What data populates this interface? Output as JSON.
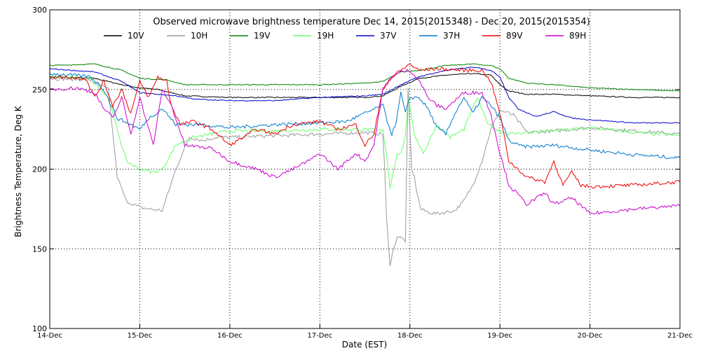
{
  "chart_data": {
    "type": "line",
    "title": "Observed microwave brightness temperature Dec 14, 2015(2015348) - Dec 20, 2015(2015354)",
    "xlabel": "Date (EST)",
    "ylabel": "Brightness Temperature, Deg K",
    "xlim": [
      0,
      7
    ],
    "ylim": [
      100,
      300
    ],
    "yticks": [
      100,
      150,
      200,
      250,
      300
    ],
    "xticks": [
      0,
      1,
      2,
      3,
      4,
      5,
      6,
      7
    ],
    "xtick_labels": [
      "14-Dec",
      "15-Dec",
      "16-Dec",
      "17-Dec",
      "18-Dec",
      "19-Dec",
      "20-Dec",
      "21-Dec"
    ],
    "grid": "dotted",
    "legend_position": "top",
    "series": [
      {
        "name": "10V",
        "color": "#000000",
        "x": [
          0,
          0.5,
          0.8,
          1.0,
          1.2,
          1.5,
          2.0,
          3.0,
          3.5,
          3.7,
          3.9,
          4.1,
          4.4,
          4.7,
          4.9,
          5.0,
          5.1,
          5.3,
          5.6,
          6.0,
          6.5,
          7.0
        ],
        "y": [
          258,
          257,
          253,
          251,
          250,
          246,
          245,
          245,
          245,
          246,
          252,
          257,
          259,
          260,
          259,
          253,
          249,
          247,
          247,
          246,
          245,
          245
        ]
      },
      {
        "name": "10H",
        "color": "#999999",
        "x": [
          0,
          0.45,
          0.65,
          0.75,
          0.85,
          1.0,
          1.1,
          1.25,
          1.4,
          1.55,
          1.7,
          1.85,
          2.0,
          2.5,
          3.0,
          3.5,
          3.7,
          3.72,
          3.74,
          3.78,
          3.82,
          3.86,
          3.9,
          3.95,
          3.98,
          4.02,
          4.05,
          4.08,
          4.12,
          4.2,
          4.3,
          4.5,
          4.6,
          4.7,
          4.8,
          4.9,
          5.0,
          5.15,
          5.3,
          5.6,
          6.0,
          6.5,
          7.0
        ],
        "y": [
          257,
          256,
          250,
          195,
          180,
          176,
          175,
          174,
          200,
          220,
          218,
          220,
          220,
          221,
          222,
          223,
          222,
          200,
          170,
          140,
          150,
          158,
          157,
          155,
          250,
          200,
          195,
          185,
          175,
          173,
          172,
          174,
          180,
          190,
          205,
          225,
          237,
          234,
          223,
          224,
          226,
          224,
          222
        ]
      },
      {
        "name": "19V",
        "color": "#008000",
        "x": [
          0,
          0.5,
          0.8,
          1.0,
          1.3,
          1.5,
          2.0,
          3.0,
          3.5,
          3.7,
          3.9,
          4.1,
          4.4,
          4.7,
          4.9,
          5.0,
          5.1,
          5.3,
          5.6,
          6.0,
          6.5,
          7.0
        ],
        "y": [
          265,
          266,
          262,
          257,
          256,
          253,
          253,
          253,
          254,
          255,
          261,
          262,
          265,
          266,
          265,
          263,
          257,
          254,
          253,
          251,
          250,
          249
        ]
      },
      {
        "name": "19H",
        "color": "#66ff66",
        "x": [
          0,
          0.45,
          0.65,
          0.75,
          0.85,
          1.0,
          1.15,
          1.25,
          1.4,
          1.6,
          1.8,
          2.0,
          2.5,
          3.0,
          3.5,
          3.7,
          3.74,
          3.78,
          3.82,
          3.86,
          3.9,
          3.95,
          3.98,
          4.05,
          4.15,
          4.3,
          4.45,
          4.6,
          4.75,
          4.85,
          4.95,
          5.1,
          5.3,
          5.6,
          6.0,
          6.5,
          7.0
        ],
        "y": [
          258,
          257,
          245,
          225,
          205,
          200,
          198,
          200,
          215,
          220,
          222,
          224,
          224,
          225,
          225,
          224,
          210,
          188,
          200,
          210,
          210,
          220,
          245,
          222,
          210,
          228,
          220,
          225,
          245,
          230,
          225,
          222,
          223,
          224,
          226,
          223,
          221
        ]
      },
      {
        "name": "37V",
        "color": "#0000cc",
        "x": [
          0,
          0.5,
          0.8,
          1.0,
          1.2,
          1.4,
          1.6,
          2.0,
          2.5,
          3.0,
          3.5,
          3.7,
          3.9,
          4.1,
          4.4,
          4.7,
          4.9,
          5.0,
          5.1,
          5.2,
          5.4,
          5.6,
          5.8,
          6.0,
          6.5,
          7.0
        ],
        "y": [
          263,
          261,
          255,
          248,
          247,
          246,
          244,
          243,
          243,
          245,
          246,
          247,
          253,
          258,
          262,
          264,
          262,
          258,
          245,
          238,
          233,
          236,
          232,
          231,
          229,
          229
        ]
      },
      {
        "name": "37H",
        "color": "#0077cc",
        "x": [
          0,
          0.45,
          0.6,
          0.75,
          0.9,
          1.0,
          1.1,
          1.25,
          1.4,
          1.7,
          2.0,
          2.5,
          3.0,
          3.3,
          3.5,
          3.7,
          3.75,
          3.8,
          3.85,
          3.9,
          3.95,
          4.0,
          4.1,
          4.2,
          4.3,
          4.4,
          4.5,
          4.6,
          4.7,
          4.8,
          4.9,
          5.0,
          5.1,
          5.2,
          5.3,
          5.6,
          6.0,
          6.5,
          7.0
        ],
        "y": [
          260,
          258,
          250,
          232,
          228,
          225,
          232,
          238,
          228,
          228,
          226,
          228,
          229,
          230,
          235,
          240,
          230,
          222,
          230,
          248,
          235,
          245,
          245,
          238,
          226,
          222,
          235,
          245,
          235,
          245,
          240,
          232,
          218,
          215,
          214,
          215,
          212,
          209,
          207
        ]
      },
      {
        "name": "89V",
        "color": "#ee0000",
        "x": [
          0,
          0.4,
          0.5,
          0.6,
          0.7,
          0.8,
          0.9,
          1.0,
          1.1,
          1.2,
          1.3,
          1.35,
          1.45,
          1.6,
          1.8,
          2.0,
          2.3,
          2.5,
          2.7,
          3.0,
          3.2,
          3.4,
          3.5,
          3.6,
          3.7,
          3.8,
          3.9,
          4.0,
          4.1,
          4.3,
          4.6,
          4.8,
          4.9,
          5.0,
          5.1,
          5.3,
          5.5,
          5.6,
          5.7,
          5.8,
          5.9,
          6.0,
          6.5,
          7.0
        ],
        "y": [
          258,
          257,
          245,
          255,
          240,
          250,
          235,
          255,
          245,
          258,
          255,
          240,
          228,
          230,
          225,
          215,
          225,
          222,
          228,
          230,
          225,
          228,
          215,
          222,
          250,
          258,
          262,
          266,
          262,
          263,
          262,
          262,
          255,
          235,
          205,
          195,
          192,
          205,
          190,
          198,
          190,
          189,
          190,
          192
        ]
      },
      {
        "name": "89H",
        "color": "#cc00cc",
        "x": [
          0,
          0.3,
          0.5,
          0.6,
          0.7,
          0.8,
          0.9,
          1.0,
          1.15,
          1.25,
          1.35,
          1.5,
          1.8,
          2.0,
          2.3,
          2.5,
          2.7,
          2.9,
          3.0,
          3.2,
          3.4,
          3.5,
          3.6,
          3.7,
          3.8,
          3.9,
          4.0,
          4.1,
          4.2,
          4.3,
          4.4,
          4.6,
          4.8,
          4.9,
          5.0,
          5.1,
          5.3,
          5.5,
          5.6,
          5.8,
          6.0,
          6.5,
          7.0
        ],
        "y": [
          250,
          251,
          248,
          238,
          232,
          245,
          222,
          245,
          215,
          250,
          240,
          215,
          213,
          205,
          200,
          195,
          200,
          206,
          210,
          200,
          210,
          205,
          215,
          250,
          258,
          261,
          262,
          256,
          245,
          240,
          238,
          248,
          248,
          235,
          210,
          190,
          178,
          185,
          178,
          182,
          172,
          175,
          177
        ]
      }
    ]
  }
}
